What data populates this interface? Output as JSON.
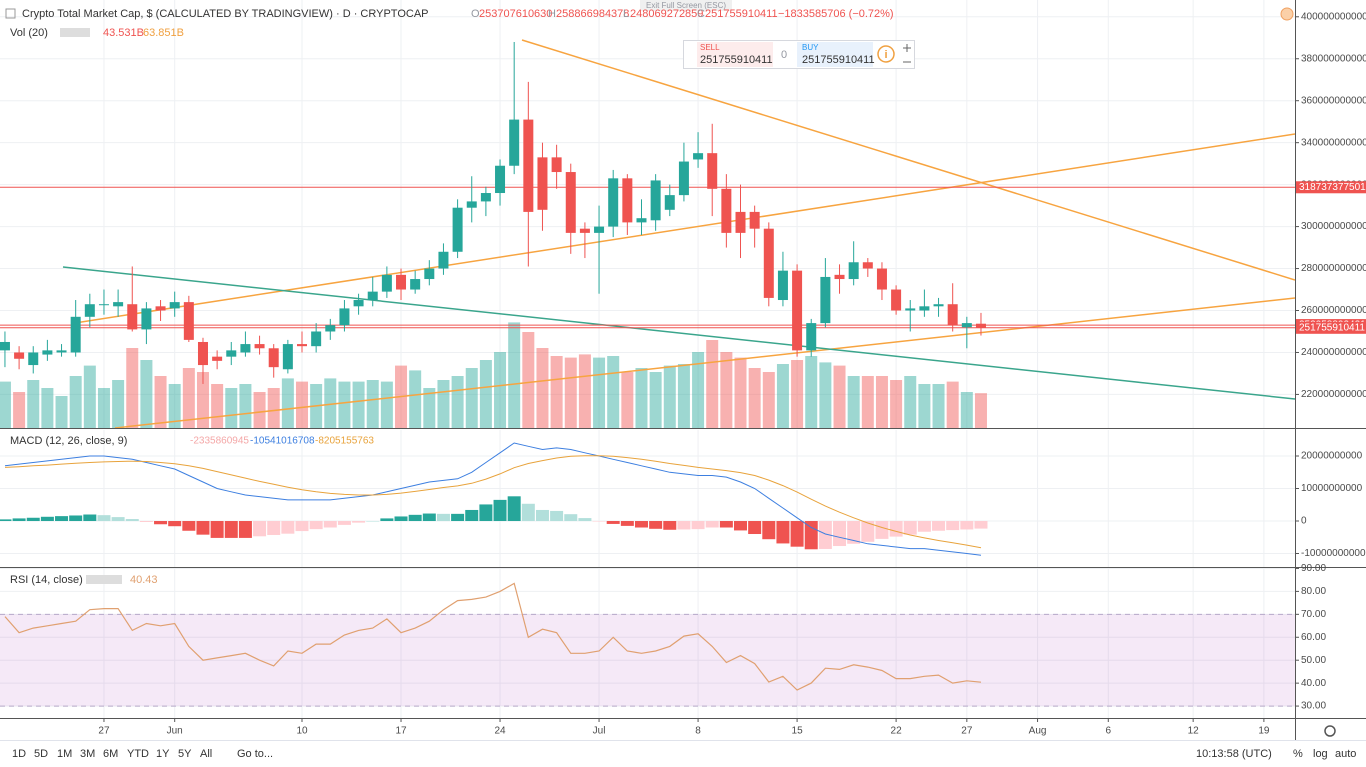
{
  "header": {
    "symbol": "Crypto Total Market Cap, $ (CALCULATED BY TRADINGVIEW) · D · CRYPTOCAP",
    "ohlc_keys": [
      "O",
      "H",
      "L",
      "C"
    ],
    "change": "−1833585706 (−0.72%)",
    "exit_full_screen": "Exit Full Screen (ESC)"
  },
  "trade_widget": {
    "sell": "SELL",
    "spread": "0",
    "buy": "BUY"
  },
  "chart_data": [
    {
      "type": "candlestick",
      "up_color": "#26a69a",
      "down_color": "#ef5350",
      "grid": true,
      "xlim": [
        -0.35,
        91.2
      ],
      "xticks": [
        {
          "value": 7,
          "label": "27"
        },
        {
          "value": 12,
          "label": "Jun"
        },
        {
          "value": 21,
          "label": "10"
        },
        {
          "value": 28,
          "label": "17"
        },
        {
          "value": 35,
          "label": "24"
        },
        {
          "value": 42,
          "label": "Jul"
        },
        {
          "value": 49,
          "label": "8"
        },
        {
          "value": 56,
          "label": "15"
        },
        {
          "value": 63,
          "label": "22"
        },
        {
          "value": 68,
          "label": "27"
        },
        {
          "value": 73,
          "label": "Aug"
        },
        {
          "value": 78,
          "label": "6"
        },
        {
          "value": 84,
          "label": "12"
        },
        {
          "value": 89,
          "label": "19"
        }
      ],
      "ylim": [
        204000000000.0,
        408000000000.0
      ],
      "yticks": [
        220000000000.0,
        240000000000.0,
        260000000000.0,
        280000000000.0,
        300000000000.0,
        320000000000.0,
        340000000000.0,
        360000000000.0,
        380000000000.0,
        400000000000.0
      ],
      "price_lines": [
        318737377501,
        253058802421,
        251755910411
      ],
      "price_line_color": "#ef5350",
      "open": [
        241000000000.0,
        240000000000.0,
        234000000000.0,
        239000000000.0,
        240000000000.0,
        240000000000.0,
        257000000000.0,
        263000000000.0,
        262000000000.0,
        263000000000.0,
        251000000000.0,
        262000000000.0,
        261000000000.0,
        264000000000.0,
        245000000000.0,
        238000000000.0,
        238000000000.0,
        240000000000.0,
        244000000000.0,
        242000000000.0,
        232000000000.0,
        244000000000.0,
        243000000000.0,
        250000000000.0,
        253000000000.0,
        262000000000.0,
        265000000000.0,
        269000000000.0,
        277000000000.0,
        270000000000.0,
        275000000000.0,
        280000000000.0,
        288000000000.0,
        309000000000.0,
        312000000000.0,
        316000000000.0,
        329000000000.0,
        351000000000.0,
        333000000000.0,
        333000000000.0,
        326000000000.0,
        299000000000.0,
        297000000000.0,
        300000000000.0,
        323000000000.0,
        302000000000.0,
        303000000000.0,
        308000000000.0,
        315000000000.0,
        332000000000.0,
        335000000000.0,
        318000000000.0,
        307000000000.0,
        307000000000.0,
        299000000000.0,
        265000000000.0,
        279000000000.0,
        241000000000.0,
        254000000000.0,
        277000000000.0,
        275000000000.0,
        283000000000.0,
        280000000000.0,
        270000000000.0,
        260000000000.0,
        260000000000.0,
        262000000000.0,
        263000000000.0,
        252000000000.0,
        253707610630
      ],
      "high": [
        250000000000.0,
        243000000000.0,
        243000000000.0,
        246000000000.0,
        244000000000.0,
        265000000000.0,
        268000000000.0,
        270000000000.0,
        270000000000.0,
        281000000000.0,
        264000000000.0,
        265000000000.0,
        269000000000.0,
        267000000000.0,
        247000000000.0,
        241000000000.0,
        245000000000.0,
        250000000000.0,
        248000000000.0,
        244000000000.0,
        246000000000.0,
        250000000000.0,
        254000000000.0,
        256000000000.0,
        265000000000.0,
        268000000000.0,
        276000000000.0,
        281000000000.0,
        280000000000.0,
        279000000000.0,
        284000000000.0,
        292000000000.0,
        313000000000.0,
        324000000000.0,
        319000000000.0,
        332000000000.0,
        388000000000.0,
        369000000000.0,
        340000000000.0,
        339000000000.0,
        330000000000.0,
        302000000000.0,
        310000000000.0,
        327000000000.0,
        325000000000.0,
        313000000000.0,
        325000000000.0,
        320000000000.0,
        340000000000.0,
        345000000000.0,
        349000000000.0,
        325000000000.0,
        320000000000.0,
        310000000000.0,
        302000000000.0,
        288000000000.0,
        282000000000.0,
        256000000000.0,
        285000000000.0,
        282000000000.0,
        293000000000.0,
        285000000000.0,
        283000000000.0,
        272000000000.0,
        265000000000.0,
        270000000000.0,
        266000000000.0,
        273000000000.0,
        257000000000.0,
        258866984378
      ],
      "low": [
        233000000000.0,
        232000000000.0,
        230000000000.0,
        236000000000.0,
        238000000000.0,
        238000000000.0,
        252000000000.0,
        258000000000.0,
        257000000000.0,
        250000000000.0,
        244000000000.0,
        255000000000.0,
        257000000000.0,
        245000000000.0,
        225000000000.0,
        232000000000.0,
        234000000000.0,
        238000000000.0,
        239000000000.0,
        228000000000.0,
        230000000000.0,
        240000000000.0,
        240000000000.0,
        246000000000.0,
        250000000000.0,
        258000000000.0,
        262000000000.0,
        266000000000.0,
        265000000000.0,
        268000000000.0,
        272000000000.0,
        277000000000.0,
        285000000000.0,
        302000000000.0,
        305000000000.0,
        310000000000.0,
        325000000000.0,
        281000000000.0,
        298000000000.0,
        318000000000.0,
        287000000000.0,
        285000000000.0,
        268000000000.0,
        295000000000.0,
        296000000000.0,
        296000000000.0,
        298000000000.0,
        305000000000.0,
        312000000000.0,
        328000000000.0,
        305000000000.0,
        290000000000.0,
        285000000000.0,
        290000000000.0,
        262000000000.0,
        262000000000.0,
        238000000000.0,
        238000000000.0,
        252000000000.0,
        268000000000.0,
        272000000000.0,
        276000000000.0,
        265000000000.0,
        258000000000.0,
        250000000000.0,
        257000000000.0,
        257000000000.0,
        250000000000.0,
        242000000000.0,
        248069272859
      ],
      "close": [
        245000000000.0,
        237000000000.0,
        240000000000.0,
        241000000000.0,
        241000000000.0,
        257000000000.0,
        263000000000.0,
        263000000000.0,
        264000000000.0,
        251000000000.0,
        261000000000.0,
        260000000000.0,
        264000000000.0,
        246000000000.0,
        234000000000.0,
        236000000000.0,
        241000000000.0,
        244000000000.0,
        242000000000.0,
        233000000000.0,
        244000000000.0,
        243000000000.0,
        250000000000.0,
        253000000000.0,
        261000000000.0,
        265000000000.0,
        269000000000.0,
        277000000000.0,
        270000000000.0,
        275000000000.0,
        280000000000.0,
        288000000000.0,
        309000000000.0,
        312000000000.0,
        316000000000.0,
        329000000000.0,
        351000000000.0,
        307000000000.0,
        308000000000.0,
        326000000000.0,
        297000000000.0,
        297000000000.0,
        300000000000.0,
        323000000000.0,
        302000000000.0,
        304000000000.0,
        322000000000.0,
        315000000000.0,
        331000000000.0,
        335000000000.0,
        318000000000.0,
        297000000000.0,
        297000000000.0,
        299000000000.0,
        266000000000.0,
        279000000000.0,
        241000000000.0,
        254000000000.0,
        276000000000.0,
        275000000000.0,
        283000000000.0,
        280000000000.0,
        270000000000.0,
        260000000000.0,
        261000000000.0,
        262000000000.0,
        263000000000.0,
        253000000000.0,
        254000000000.0,
        251755910411
      ],
      "volume": {
        "name": "Vol (20)",
        "legend_labels": [
          "43.531B",
          "63.851B"
        ],
        "values": [
          58,
          45,
          60,
          50,
          40,
          65,
          78,
          50,
          60,
          100,
          85,
          65,
          55,
          75,
          70,
          55,
          50,
          55,
          45,
          50,
          62,
          58,
          55,
          62,
          58,
          58,
          60,
          58,
          78,
          72,
          50,
          60,
          65,
          75,
          85,
          95,
          132,
          120,
          100,
          90,
          88,
          92,
          88,
          90,
          70,
          75,
          70,
          78,
          80,
          95,
          110,
          95,
          88,
          75,
          70,
          80,
          85,
          90,
          82,
          78,
          65,
          65,
          65,
          60,
          65,
          55,
          55,
          58,
          45,
          43.531
        ]
      }
    },
    {
      "type": "macd",
      "title": "MACD (12, 26, close, 9)",
      "grid": true,
      "ylim": [
        -14150000000.0,
        28000000000.0
      ],
      "yticks": [
        20000000000,
        10000000000,
        0,
        -10000000000
      ],
      "histogram_colors": {
        "up": "#26a69a",
        "up_fade": "#b2dfdb",
        "down": "#ef5350",
        "down_fade": "#ffcdd2"
      },
      "series": [
        {
          "color": "#f4a7a7",
          "values": [
            500000000.0,
            800000000.0,
            1000000000.0,
            1300000000.0,
            1500000000.0,
            1700000000.0,
            2000000000.0,
            1800000000.0,
            1200000000.0,
            600000000.0,
            -300000000.0,
            -1000000000.0,
            -1600000000.0,
            -3000000000.0,
            -4200000000.0,
            -5200000000.0,
            -5200000000.0,
            -5200000000.0,
            -4700000000.0,
            -4300000000.0,
            -3900000000.0,
            -3100000000.0,
            -2500000000.0,
            -2000000000.0,
            -1200000000.0,
            -500000000.0,
            0,
            800000000.0,
            1400000000.0,
            1900000000.0,
            2300000000.0,
            2200000000.0,
            2200000000.0,
            3400000000.0,
            5100000000.0,
            6500000000.0,
            7600000000.0,
            5300000000.0,
            3400000000.0,
            3100000000.0,
            2100000000.0,
            900000000.0,
            -100000000.0,
            -900000000.0,
            -1500000000.0,
            -2000000000.0,
            -2400000000.0,
            -2700000000.0,
            -2600000000.0,
            -2500000000.0,
            -2000000000.0,
            -2000000000.0,
            -2900000000.0,
            -4000000000.0,
            -5600000000.0,
            -6900000000.0,
            -7900000000.0,
            -8700000000.0,
            -8600000000.0,
            -7700000000.0,
            -7000000000.0,
            -6400000000.0,
            -5500000000.0,
            -4800000000.0,
            -4200000000.0,
            -3300000000.0,
            -3000000000.0,
            -2800000000.0,
            -2600000000.0,
            -2335860945
          ]
        },
        {
          "color": "#3d7fe0",
          "values": [
            17000000000.0,
            17500000000.0,
            18000000000.0,
            18500000000.0,
            19000000000.0,
            19500000000.0,
            20000000000.0,
            20000000000.0,
            19500000000.0,
            19000000000.0,
            18000000000.0,
            17000000000.0,
            16000000000.0,
            14000000000.0,
            12000000000.0,
            10000000000.0,
            9000000000.0,
            8000000000.0,
            7500000000.0,
            7000000000.0,
            6500000000.0,
            6500000000.0,
            6500000000.0,
            6500000000.0,
            7000000000.0,
            7500000000.0,
            8000000000.0,
            9000000000.0,
            10000000000.0,
            11000000000.0,
            12000000000.0,
            12500000000.0,
            13000000000.0,
            15000000000.0,
            18000000000.0,
            21000000000.0,
            24000000000.0,
            23000000000.0,
            22000000000.0,
            22500000000.0,
            22000000000.0,
            21000000000.0,
            20000000000.0,
            19000000000.0,
            18000000000.0,
            17000000000.0,
            16000000000.0,
            15000000000.0,
            14500000000.0,
            14000000000.0,
            14000000000.0,
            13500000000.0,
            12000000000.0,
            10000000000.0,
            7000000000.0,
            4000000000.0,
            1000000000.0,
            -2000000000.0,
            -4000000000.0,
            -5000000000.0,
            -6000000000.0,
            -7000000000.0,
            -7500000000.0,
            -8000000000.0,
            -8500000000.0,
            -8500000000.0,
            -9000000000.0,
            -9500000000.0,
            -10000000000.0,
            -10541016708
          ]
        },
        {
          "color": "#e8a33c",
          "values": [
            16500000000.0,
            16700000000.0,
            17000000000.0,
            17200000000.0,
            17500000000.0,
            17800000000.0,
            18000000000.0,
            18200000000.0,
            18300000000.0,
            18400000000.0,
            18300000000.0,
            18000000000.0,
            17600000000.0,
            17000000000.0,
            16200000000.0,
            15200000000.0,
            14200000000.0,
            13200000000.0,
            12200000000.0,
            11300000000.0,
            10400000000.0,
            9600000000.0,
            9000000000.0,
            8500000000.0,
            8200000000.0,
            8000000000.0,
            8000000000.0,
            8200000000.0,
            8600000000.0,
            9100000000.0,
            9700000000.0,
            10300000000.0,
            10800000000.0,
            11600000000.0,
            12900000000.0,
            14500000000.0,
            16400000000.0,
            17700000000.0,
            18600000000.0,
            19400000000.0,
            19900000000.0,
            20100000000.0,
            20100000000.0,
            19900000000.0,
            19500000000.0,
            19000000000.0,
            18400000000.0,
            17700000000.0,
            17100000000.0,
            16500000000.0,
            16000000000.0,
            15500000000.0,
            14900000000.0,
            14000000000.0,
            12600000000.0,
            10900000000.0,
            8900000000.0,
            6700000000.0,
            4600000000.0,
            2700000000.0,
            1000000000.0,
            -600000000.0,
            -2000000000.0,
            -3200000000.0,
            -4300000000.0,
            -5200000000.0,
            -6000000000.0,
            -6700000000.0,
            -7400000000.0,
            -8205155763
          ]
        }
      ]
    },
    {
      "type": "line",
      "title": "RSI (14, close)",
      "color": "#e0a070",
      "band": [
        30,
        70
      ],
      "band_color": "#9c27b0",
      "grid": true,
      "ylim": [
        24.8,
        90.2
      ],
      "yticks": [
        {
          "value": 30,
          "label": "30.00"
        },
        {
          "value": 40,
          "label": "40.00"
        },
        {
          "value": 50,
          "label": "50.00"
        },
        {
          "value": 60,
          "label": "60.00"
        },
        {
          "value": 70,
          "label": "70.00"
        },
        {
          "value": 80,
          "label": "80.00"
        },
        {
          "value": 90,
          "label": "90.00"
        }
      ],
      "values": [
        69,
        62,
        64,
        65,
        66,
        67,
        72,
        72.5,
        72.5,
        63,
        66,
        65,
        66,
        56,
        50,
        51,
        52,
        53,
        50,
        47.5,
        54,
        53,
        57,
        57,
        61,
        63,
        64,
        68,
        62,
        64,
        67,
        72,
        76,
        76.5,
        77.5,
        80,
        83.5,
        60,
        63.5,
        62,
        53,
        53,
        54,
        60,
        54,
        53,
        54,
        56,
        60.5,
        61.5,
        56,
        49,
        52,
        48.5,
        40.5,
        43,
        37,
        40,
        46.5,
        46,
        48,
        47,
        45.5,
        42,
        42,
        43,
        43.5,
        40,
        41,
        40.43
      ]
    }
  ],
  "toolbar": {
    "ranges": [
      "1D",
      "5D",
      "1M",
      "3M",
      "6M",
      "YTD",
      "1Y",
      "5Y",
      "All"
    ],
    "goto": "Go to...",
    "time": "10:13:58 (UTC)",
    "scale_options": [
      "%",
      "log",
      "auto"
    ]
  }
}
